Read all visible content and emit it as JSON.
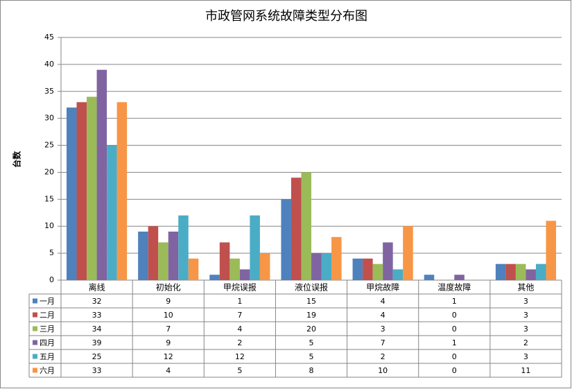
{
  "chart_data": {
    "type": "bar",
    "title": "市政管网系统故障类型分布图",
    "y_label": "台数",
    "categories": [
      "离线",
      "初始化",
      "甲烷误报",
      "液位误报",
      "甲烷故障",
      "温度故障",
      "其他"
    ],
    "series": [
      {
        "name": "一月",
        "color": "#4f81bd",
        "values": [
          32,
          9,
          1,
          15,
          4,
          1,
          3
        ]
      },
      {
        "name": "二月",
        "color": "#c0504d",
        "values": [
          33,
          10,
          7,
          19,
          4,
          0,
          3
        ]
      },
      {
        "name": "三月",
        "color": "#9bbb59",
        "values": [
          34,
          7,
          4,
          20,
          3,
          0,
          3
        ]
      },
      {
        "name": "四月",
        "color": "#8064a2",
        "values": [
          39,
          9,
          2,
          5,
          7,
          1,
          2
        ]
      },
      {
        "name": "五月",
        "color": "#4bacc6",
        "values": [
          25,
          12,
          12,
          5,
          2,
          0,
          3
        ]
      },
      {
        "name": "六月",
        "color": "#f79646",
        "values": [
          33,
          4,
          5,
          8,
          10,
          0,
          11
        ]
      }
    ],
    "ylim": [
      0,
      45
    ],
    "yticks": [
      0,
      5,
      10,
      15,
      20,
      25,
      30,
      35,
      40,
      45
    ],
    "grid": true,
    "data_table": true
  }
}
